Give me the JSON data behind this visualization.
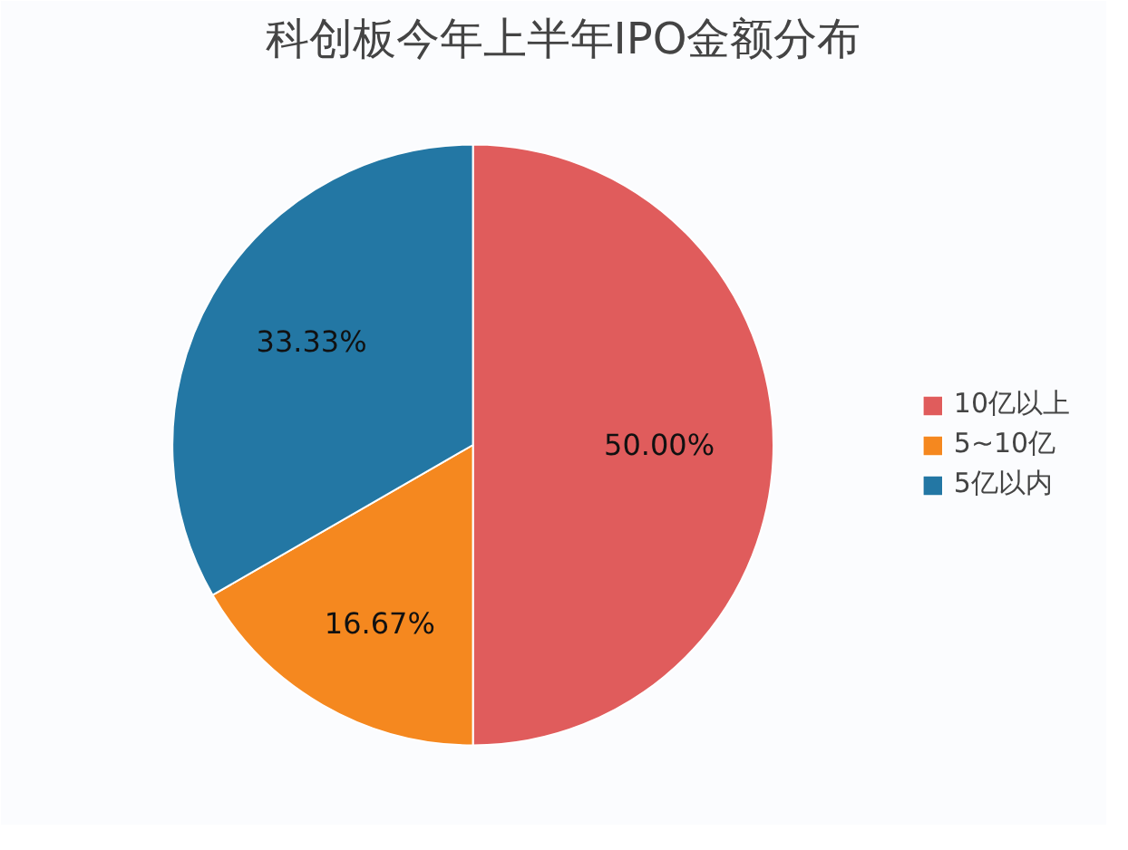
{
  "chart_data": {
    "type": "pie",
    "title": "科创板今年上半年IPO金额分布",
    "categories": [
      "10亿以上",
      "5~10亿",
      "5亿以内"
    ],
    "values": [
      50,
      16.67,
      33.33
    ],
    "colors": [
      "#e05c5c",
      "#f5881f",
      "#2377a4"
    ],
    "value_labels": [
      "50.00%",
      "16.67%",
      "33.33%"
    ],
    "legend": "right"
  }
}
